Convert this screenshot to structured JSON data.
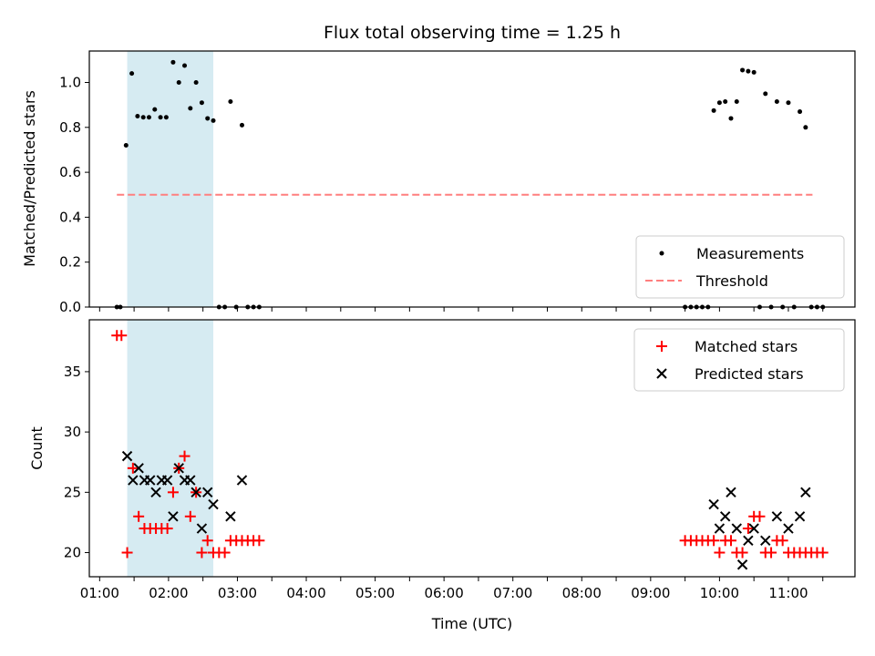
{
  "chart_data": [
    {
      "type": "scatter",
      "title": "Flux total observing time = 1.25 h",
      "xlabel": "",
      "ylabel": "Matched/Predicted stars",
      "ylim": [
        0,
        1.14
      ],
      "xlim": [
        "00:51",
        "11:58"
      ],
      "yticks": [
        "0.0",
        "0.2",
        "0.4",
        "0.6",
        "0.8",
        "1.0"
      ],
      "highlight_span": [
        "01:24",
        "02:39"
      ],
      "legend_position": "bottom-right",
      "legend": {
        "measurements": "Measurements",
        "threshold": "Threshold"
      },
      "threshold": {
        "name": "Threshold",
        "value": 0.5,
        "x_range": [
          "01:15",
          "11:21"
        ]
      },
      "series": [
        {
          "name": "Measurements",
          "points": [
            [
              "01:15",
              0
            ],
            [
              "01:18",
              0
            ],
            [
              "01:23",
              0.72
            ],
            [
              "01:28",
              1.04
            ],
            [
              "01:33",
              0.85
            ],
            [
              "01:38",
              0.845
            ],
            [
              "01:43",
              0.845
            ],
            [
              "01:48",
              0.88
            ],
            [
              "01:53",
              0.845
            ],
            [
              "01:58",
              0.845
            ],
            [
              "02:04",
              1.09
            ],
            [
              "02:09",
              1.0
            ],
            [
              "02:14",
              1.075
            ],
            [
              "02:19",
              0.885
            ],
            [
              "02:24",
              1.0
            ],
            [
              "02:29",
              0.91
            ],
            [
              "02:34",
              0.84
            ],
            [
              "02:39",
              0.83
            ],
            [
              "02:44",
              0
            ],
            [
              "02:49",
              0
            ],
            [
              "02:54",
              0.915
            ],
            [
              "02:59",
              0
            ],
            [
              "03:04",
              0.81
            ],
            [
              "03:09",
              0
            ],
            [
              "03:14",
              0
            ],
            [
              "03:19",
              0
            ],
            [
              "09:30",
              0
            ],
            [
              "09:35",
              0
            ],
            [
              "09:40",
              0
            ],
            [
              "09:45",
              0
            ],
            [
              "09:50",
              0
            ],
            [
              "09:55",
              0.875
            ],
            [
              "10:00",
              0.91
            ],
            [
              "10:05",
              0.915
            ],
            [
              "10:10",
              0.84
            ],
            [
              "10:15",
              0.915
            ],
            [
              "10:20",
              1.055
            ],
            [
              "10:25",
              1.05
            ],
            [
              "10:30",
              1.045
            ],
            [
              "10:35",
              0
            ],
            [
              "10:40",
              0.95
            ],
            [
              "10:45",
              0
            ],
            [
              "10:50",
              0.915
            ],
            [
              "10:55",
              0
            ],
            [
              "11:00",
              0.91
            ],
            [
              "11:05",
              0
            ],
            [
              "11:10",
              0.87
            ],
            [
              "11:15",
              0.8
            ],
            [
              "11:20",
              0
            ],
            [
              "11:25",
              0
            ],
            [
              "11:30",
              0
            ]
          ]
        }
      ]
    },
    {
      "type": "scatter",
      "xlabel": "Time (UTC)",
      "ylabel": "Count",
      "ylim": [
        18,
        39.3
      ],
      "xlim": [
        "00:51",
        "11:58"
      ],
      "yticks": [
        "20",
        "25",
        "30",
        "35"
      ],
      "xticks": [
        "01:00",
        "02:00",
        "03:00",
        "04:00",
        "05:00",
        "06:00",
        "07:00",
        "08:00",
        "09:00",
        "10:00",
        "11:00"
      ],
      "highlight_span": [
        "01:24",
        "02:39"
      ],
      "legend_position": "top-right",
      "legend": {
        "matched": "Matched stars",
        "predicted": "Predicted stars"
      },
      "series": [
        {
          "name": "Matched stars",
          "points": [
            [
              "01:15",
              38
            ],
            [
              "01:19",
              38
            ],
            [
              "01:24",
              20
            ],
            [
              "01:29",
              27
            ],
            [
              "01:34",
              23
            ],
            [
              "01:39",
              22
            ],
            [
              "01:44",
              22
            ],
            [
              "01:49",
              22
            ],
            [
              "01:54",
              22
            ],
            [
              "01:59",
              22
            ],
            [
              "02:04",
              25
            ],
            [
              "02:09",
              27
            ],
            [
              "02:14",
              28
            ],
            [
              "02:19",
              23
            ],
            [
              "02:24",
              25
            ],
            [
              "02:29",
              20
            ],
            [
              "02:34",
              21
            ],
            [
              "02:39",
              20
            ],
            [
              "02:44",
              20
            ],
            [
              "02:49",
              20
            ],
            [
              "02:54",
              21
            ],
            [
              "02:59",
              21
            ],
            [
              "03:04",
              21
            ],
            [
              "03:09",
              21
            ],
            [
              "03:14",
              21
            ],
            [
              "03:19",
              21
            ],
            [
              "09:30",
              21
            ],
            [
              "09:35",
              21
            ],
            [
              "09:40",
              21
            ],
            [
              "09:45",
              21
            ],
            [
              "09:50",
              21
            ],
            [
              "09:55",
              21
            ],
            [
              "10:00",
              20
            ],
            [
              "10:05",
              21
            ],
            [
              "10:10",
              21
            ],
            [
              "10:15",
              20
            ],
            [
              "10:20",
              20
            ],
            [
              "10:25",
              22
            ],
            [
              "10:30",
              23
            ],
            [
              "10:35",
              23
            ],
            [
              "10:40",
              20
            ],
            [
              "10:45",
              20
            ],
            [
              "10:50",
              21
            ],
            [
              "10:55",
              21
            ],
            [
              "11:00",
              20
            ],
            [
              "11:05",
              20
            ],
            [
              "11:10",
              20
            ],
            [
              "11:15",
              20
            ],
            [
              "11:20",
              20
            ],
            [
              "11:25",
              20
            ],
            [
              "11:30",
              20
            ]
          ]
        },
        {
          "name": "Predicted stars",
          "points": [
            [
              "01:24",
              28
            ],
            [
              "01:29",
              26
            ],
            [
              "01:34",
              27
            ],
            [
              "01:39",
              26
            ],
            [
              "01:44",
              26
            ],
            [
              "01:49",
              25
            ],
            [
              "01:54",
              26
            ],
            [
              "01:59",
              26
            ],
            [
              "02:04",
              23
            ],
            [
              "02:09",
              27
            ],
            [
              "02:14",
              26
            ],
            [
              "02:19",
              26
            ],
            [
              "02:24",
              25
            ],
            [
              "02:29",
              22
            ],
            [
              "02:34",
              25
            ],
            [
              "02:39",
              24
            ],
            [
              "02:54",
              23
            ],
            [
              "03:04",
              26
            ],
            [
              "09:55",
              24
            ],
            [
              "10:00",
              22
            ],
            [
              "10:05",
              23
            ],
            [
              "10:10",
              25
            ],
            [
              "10:15",
              22
            ],
            [
              "10:20",
              19
            ],
            [
              "10:25",
              21
            ],
            [
              "10:30",
              22
            ],
            [
              "10:40",
              21
            ],
            [
              "10:50",
              23
            ],
            [
              "11:00",
              22
            ],
            [
              "11:10",
              23
            ],
            [
              "11:15",
              25
            ]
          ]
        }
      ]
    }
  ],
  "colors": {
    "measurement": "#000000",
    "threshold": "#ff7f7f",
    "matched": "#ff0000",
    "predicted": "#000000",
    "highlight": "#add8e6"
  }
}
